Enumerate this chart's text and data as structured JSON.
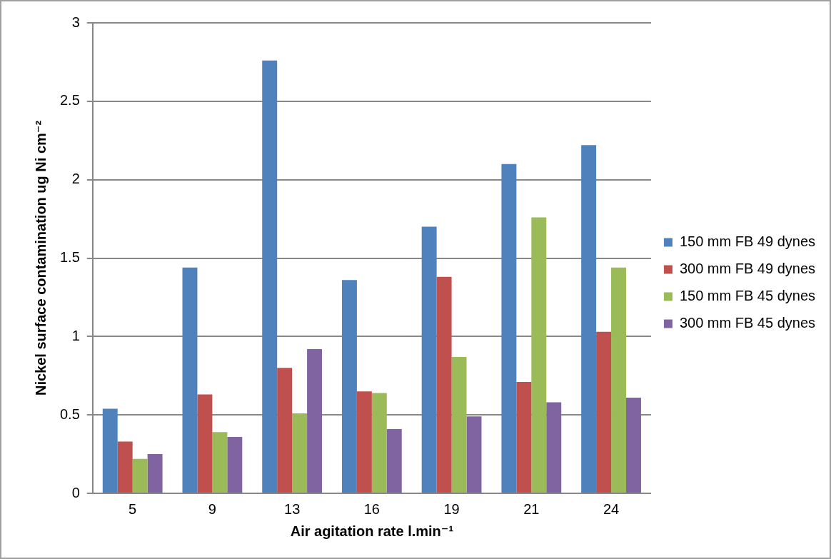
{
  "chart_data": {
    "type": "bar",
    "xlabel": "Air agitation rate l.min⁻¹",
    "ylabel": "Nickel surface contamination ug Ni cm⁻²",
    "categories": [
      "5",
      "9",
      "13",
      "16",
      "19",
      "21",
      "24"
    ],
    "series": [
      {
        "name": "150 mm FB 49 dynes",
        "color": "#4f81bd",
        "values": [
          0.54,
          1.44,
          2.76,
          1.36,
          1.7,
          2.1,
          2.22
        ]
      },
      {
        "name": "300 mm FB 49 dynes",
        "color": "#c0504d",
        "values": [
          0.33,
          0.63,
          0.8,
          0.65,
          1.38,
          0.71,
          1.03
        ]
      },
      {
        "name": "150 mm FB 45 dynes",
        "color": "#9bbb59",
        "values": [
          0.22,
          0.39,
          0.51,
          0.64,
          0.87,
          1.76,
          1.44
        ]
      },
      {
        "name": "300 mm FB 45 dynes",
        "color": "#8064a2",
        "values": [
          0.25,
          0.36,
          0.92,
          0.41,
          0.49,
          0.58,
          0.61
        ]
      }
    ],
    "ylim": [
      0,
      3
    ],
    "yticks": [
      0,
      0.5,
      1,
      1.5,
      2,
      2.5,
      3
    ],
    "grid": "y",
    "legend": "right"
  }
}
